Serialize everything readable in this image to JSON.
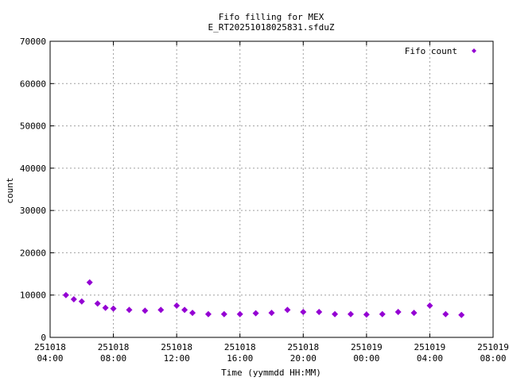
{
  "chart_data": {
    "type": "scatter",
    "title": "Fifo filling for MEX",
    "subtitle": "E_RT20251018025831.sfduZ",
    "xlabel": "Time (yymmdd HH:MM)",
    "ylabel": "count",
    "ylim": [
      0,
      70000
    ],
    "y_ticks": [
      "0",
      "10000",
      "20000",
      "30000",
      "40000",
      "50000",
      "60000",
      "70000"
    ],
    "x_ticks": [
      {
        "date": "251018",
        "time": "04:00"
      },
      {
        "date": "251018",
        "time": "08:00"
      },
      {
        "date": "251018",
        "time": "12:00"
      },
      {
        "date": "251018",
        "time": "16:00"
      },
      {
        "date": "251018",
        "time": "20:00"
      },
      {
        "date": "251019",
        "time": "00:00"
      },
      {
        "date": "251019",
        "time": "04:00"
      },
      {
        "date": "251019",
        "time": "08:00"
      }
    ],
    "xlim": [
      "2025-10-18 04:00",
      "2025-10-19 08:00"
    ],
    "grid": true,
    "legend_position": "top-right",
    "series": [
      {
        "name": "Fifo count",
        "color": "#9400d3",
        "marker": "diamond",
        "x": [
          "2025-10-18 05:00",
          "2025-10-18 05:30",
          "2025-10-18 06:00",
          "2025-10-18 06:30",
          "2025-10-18 07:00",
          "2025-10-18 07:30",
          "2025-10-18 08:00",
          "2025-10-18 09:00",
          "2025-10-18 10:00",
          "2025-10-18 11:00",
          "2025-10-18 12:00",
          "2025-10-18 12:30",
          "2025-10-18 13:00",
          "2025-10-18 14:00",
          "2025-10-18 15:00",
          "2025-10-18 16:00",
          "2025-10-18 17:00",
          "2025-10-18 18:00",
          "2025-10-18 19:00",
          "2025-10-18 20:00",
          "2025-10-18 21:00",
          "2025-10-18 22:00",
          "2025-10-18 23:00",
          "2025-10-19 00:00",
          "2025-10-19 01:00",
          "2025-10-19 02:00",
          "2025-10-19 03:00",
          "2025-10-19 04:00",
          "2025-10-19 05:00",
          "2025-10-19 06:00"
        ],
        "y": [
          10000,
          9000,
          8500,
          13000,
          8000,
          7000,
          6800,
          6500,
          6300,
          6500,
          7500,
          6500,
          5800,
          5500,
          5500,
          5500,
          5700,
          5800,
          6500,
          6000,
          6000,
          5500,
          5500,
          5400,
          5500,
          6000,
          5800,
          7500,
          5500,
          5300
        ]
      }
    ]
  }
}
